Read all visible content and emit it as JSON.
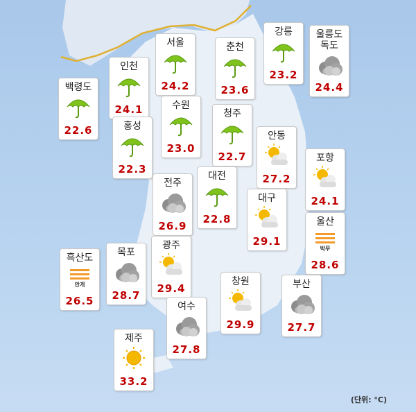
{
  "cards": [
    {
      "name": "백령도",
      "icon": "rain",
      "temp": "22.6"
    },
    {
      "name": "인천",
      "icon": "rain",
      "temp": "24.1"
    },
    {
      "name": "서울",
      "icon": "rain",
      "temp": "24.2"
    },
    {
      "name": "춘천",
      "icon": "rain",
      "temp": "23.6"
    },
    {
      "name": "강릉",
      "icon": "rain",
      "temp": "23.2"
    },
    {
      "name": "울릉도 독도",
      "icon": "cloud",
      "temp": "24.4"
    },
    {
      "name": "수원",
      "icon": "rain",
      "temp": "23.0"
    },
    {
      "name": "청주",
      "icon": "rain",
      "temp": "22.7"
    },
    {
      "name": "홍성",
      "icon": "rain",
      "temp": "22.3"
    },
    {
      "name": "안동",
      "icon": "partly",
      "temp": "27.2"
    },
    {
      "name": "포항",
      "icon": "partly",
      "temp": "24.1"
    },
    {
      "name": "전주",
      "icon": "cloud",
      "temp": "26.9"
    },
    {
      "name": "대전",
      "icon": "rain",
      "temp": "22.8"
    },
    {
      "name": "대구",
      "icon": "partly",
      "temp": "29.1"
    },
    {
      "name": "울산",
      "icon": "fog",
      "note": "박무",
      "temp": "28.6"
    },
    {
      "name": "흑산도",
      "icon": "fog",
      "note": "안개",
      "temp": "26.5"
    },
    {
      "name": "목포",
      "icon": "cloud",
      "temp": "28.7"
    },
    {
      "name": "광주",
      "icon": "partly",
      "temp": "29.4"
    },
    {
      "name": "창원",
      "icon": "partly",
      "temp": "29.9"
    },
    {
      "name": "부산",
      "icon": "cloud",
      "temp": "27.7"
    },
    {
      "name": "여수",
      "icon": "cloud",
      "temp": "27.8"
    },
    {
      "name": "제주",
      "icon": "sun",
      "temp": "33.2"
    }
  ],
  "unit": "(단위: °C)"
}
